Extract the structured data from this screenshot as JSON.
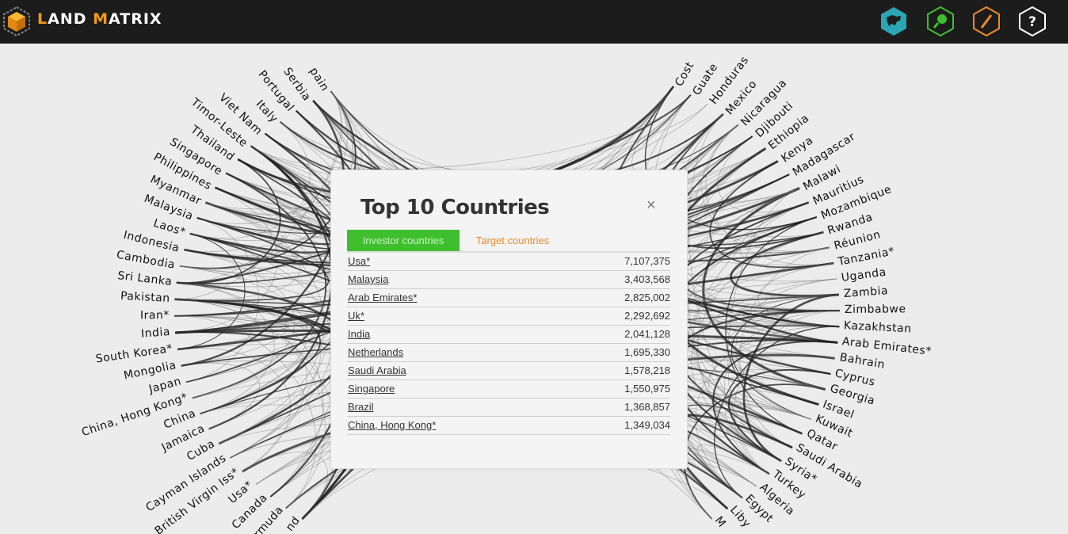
{
  "header": {
    "brand_first": "L",
    "brand_mid": "AND ",
    "brand_m": "M",
    "brand_rest": "ATRIX",
    "nav": [
      {
        "name": "global-map-icon",
        "color": "#2aa6b4"
      },
      {
        "name": "search-icon",
        "color": "#3fbf2e"
      },
      {
        "name": "edit-pencil-icon",
        "color": "#f08a24"
      },
      {
        "name": "help-icon",
        "color": "#ffffff"
      }
    ]
  },
  "modal": {
    "title": "Top 10 Countries",
    "close": "×",
    "tabs": {
      "investor": "Investor countries",
      "target": "Target countries"
    },
    "rows": [
      {
        "country": "Usa*",
        "value": "7,107,375"
      },
      {
        "country": "Malaysia",
        "value": "3,403,568"
      },
      {
        "country": "Arab Emirates*",
        "value": "2,825,002"
      },
      {
        "country": "Uk*",
        "value": "2,292,692"
      },
      {
        "country": "India",
        "value": "2,041,128"
      },
      {
        "country": "Netherlands",
        "value": "1,695,330"
      },
      {
        "country": "Saudi Arabia",
        "value": "1,578,218"
      },
      {
        "country": "Singapore",
        "value": "1,550,975"
      },
      {
        "country": "Brazil",
        "value": "1,368,857"
      },
      {
        "country": "China, Hong Kong*",
        "value": "1,349,034"
      }
    ]
  },
  "left_countries": [
    "pain",
    "Serbia",
    "Portugal",
    "Italy",
    "Viet Nam",
    "Timor-Leste",
    "Thailand",
    "Singapore",
    "Philippines",
    "Myanmar",
    "Malaysia",
    "Laos*",
    "Indonesia",
    "Cambodia",
    "Sri Lanka",
    "Pakistan",
    "Iran*",
    "India",
    "South Korea*",
    "Mongolia",
    "Japan",
    "China, Hong Kong*",
    "China",
    "Jamaica",
    "Cuba",
    "Cayman Islands",
    "British Virgin Iss*",
    "Usa*",
    "Canada",
    "ermuda",
    "nd"
  ],
  "right_countries": [
    "Cost",
    "Guate",
    "Honduras",
    "Mexico",
    "Nicaragua",
    "Djibouti",
    "Ethiopia",
    "Kenya",
    "Madagascar",
    "Malawi",
    "Mauritius",
    "Mozambique",
    "Rwanda",
    "Réunion",
    "Tanzania*",
    "Uganda",
    "Zambia",
    "Zimbabwe",
    "Kazakhstan",
    "Arab Emirates*",
    "Bahrain",
    "Cyprus",
    "Georgia",
    "Israel",
    "Kuwait",
    "Qatar",
    "Saudi Arabia",
    "Syria*",
    "Turkey",
    "Algeria",
    "Egypt",
    "Liby",
    "M"
  ],
  "colors": {
    "topbar": "#1c1c1c",
    "accent": "#f39c12",
    "tab_active": "#3fbf2e",
    "tab_inactive": "#f08a24"
  }
}
